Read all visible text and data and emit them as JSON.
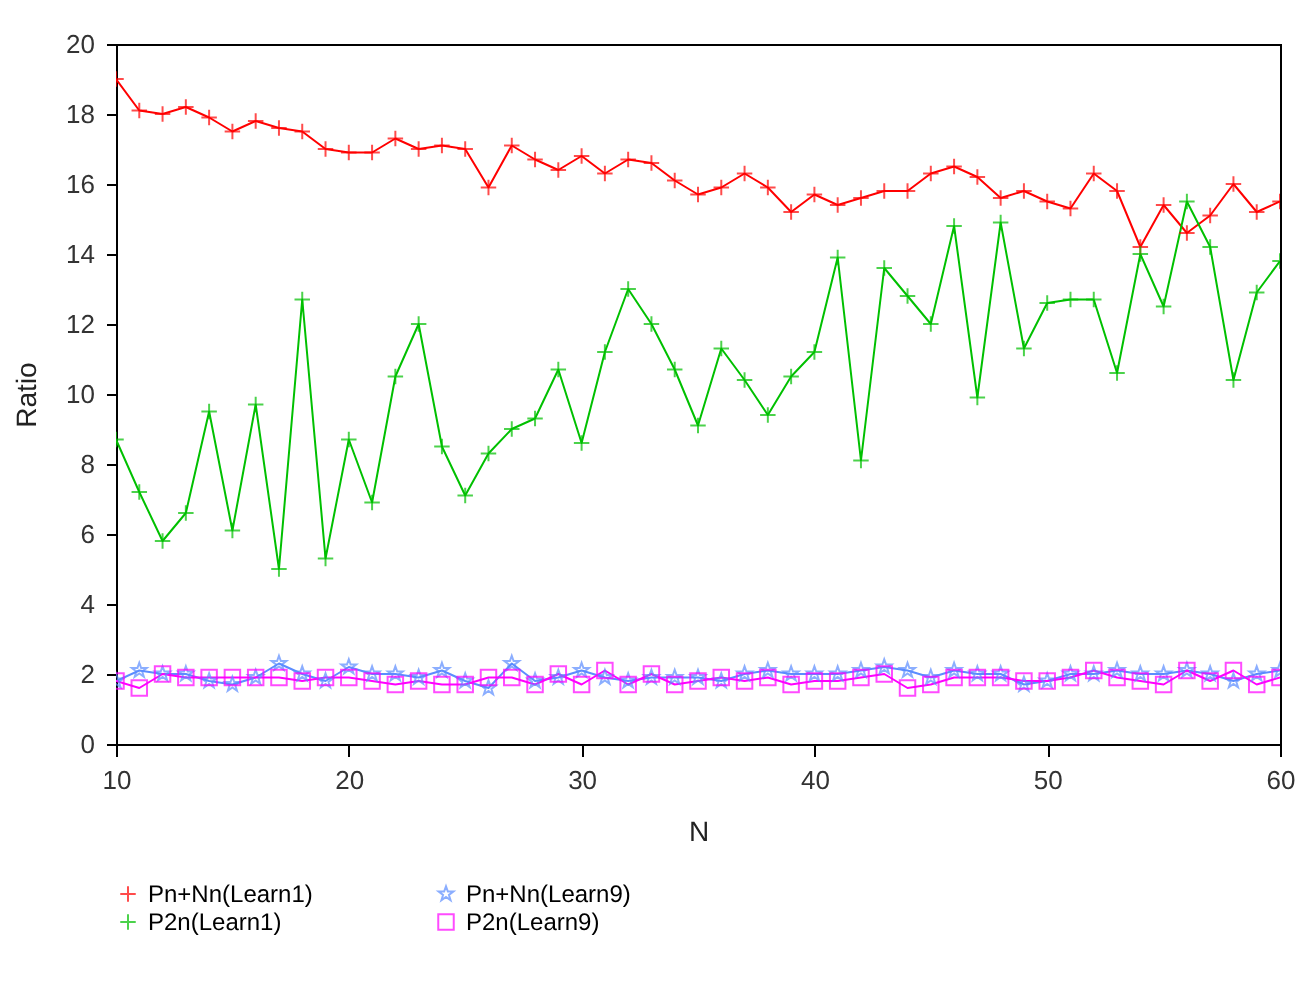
{
  "chart_data": {
    "type": "line",
    "xlabel": "N",
    "ylabel": "Ratio",
    "x": [
      10,
      11,
      12,
      13,
      14,
      15,
      16,
      17,
      18,
      19,
      20,
      21,
      22,
      23,
      24,
      25,
      26,
      27,
      28,
      29,
      30,
      31,
      32,
      33,
      34,
      35,
      36,
      37,
      38,
      39,
      40,
      41,
      42,
      43,
      44,
      45,
      46,
      47,
      48,
      49,
      50,
      51,
      52,
      53,
      54,
      55,
      56,
      57,
      58,
      59,
      60
    ],
    "series": [
      {
        "name": "Pn+Nn(Learn1)",
        "color": "#ff0000",
        "marker": "cross",
        "values": [
          19.0,
          18.1,
          18.0,
          18.2,
          17.9,
          17.5,
          17.8,
          17.6,
          17.5,
          17.0,
          16.9,
          16.9,
          17.3,
          17.0,
          17.1,
          17.0,
          15.9,
          17.1,
          16.7,
          16.4,
          16.8,
          16.3,
          16.7,
          16.6,
          16.1,
          15.7,
          15.9,
          16.3,
          15.9,
          15.2,
          15.7,
          15.4,
          15.6,
          15.8,
          15.8,
          16.3,
          16.5,
          16.2,
          15.6,
          15.8,
          15.5,
          15.3,
          16.3,
          15.8,
          14.2,
          15.4,
          14.6,
          15.1,
          16.0,
          15.2,
          15.5
        ]
      },
      {
        "name": "P2n(Learn1)",
        "color": "#00c000",
        "marker": "cross",
        "values": [
          8.7,
          7.2,
          5.8,
          6.6,
          9.5,
          6.1,
          9.7,
          5.0,
          12.7,
          5.3,
          8.7,
          6.9,
          10.5,
          12.0,
          8.5,
          7.1,
          8.3,
          9.0,
          9.3,
          10.7,
          8.6,
          11.2,
          13.0,
          12.0,
          10.7,
          9.1,
          11.3,
          10.4,
          9.4,
          10.5,
          11.2,
          13.9,
          8.1,
          13.6,
          12.8,
          12.0,
          14.8,
          9.9,
          14.9,
          11.3,
          12.6,
          12.7,
          12.7,
          10.6,
          14.0,
          12.5,
          15.5,
          14.2,
          10.4,
          12.9,
          13.8
        ]
      },
      {
        "name": "Pn+Nn(Learn9)",
        "color": "#5b8cff",
        "marker": "star",
        "values": [
          1.8,
          2.1,
          2.0,
          2.0,
          1.8,
          1.7,
          1.9,
          2.3,
          2.0,
          1.8,
          2.2,
          2.0,
          2.0,
          1.9,
          2.1,
          1.8,
          1.6,
          2.3,
          1.8,
          1.9,
          2.1,
          1.9,
          1.8,
          1.9,
          1.9,
          1.9,
          1.8,
          2.0,
          2.1,
          2.0,
          2.0,
          2.0,
          2.1,
          2.2,
          2.1,
          1.9,
          2.1,
          2.0,
          2.0,
          1.7,
          1.8,
          2.0,
          2.0,
          2.1,
          2.0,
          2.0,
          2.1,
          2.0,
          1.8,
          2.0,
          2.1
        ]
      },
      {
        "name": "P2n(Learn9)",
        "color": "#ff00ff",
        "marker": "square",
        "values": [
          1.8,
          1.6,
          2.0,
          1.9,
          1.9,
          1.9,
          1.9,
          1.9,
          1.8,
          1.9,
          1.9,
          1.8,
          1.7,
          1.8,
          1.7,
          1.7,
          1.9,
          1.9,
          1.7,
          2.0,
          1.7,
          2.1,
          1.7,
          2.0,
          1.7,
          1.8,
          1.9,
          1.8,
          1.9,
          1.7,
          1.8,
          1.8,
          1.9,
          2.0,
          1.6,
          1.7,
          1.9,
          1.9,
          1.9,
          1.8,
          1.8,
          1.9,
          2.1,
          1.9,
          1.8,
          1.7,
          2.1,
          1.8,
          2.1,
          1.7,
          1.9
        ]
      }
    ],
    "xlim": [
      10,
      60
    ],
    "xticks": [
      10,
      20,
      30,
      40,
      50,
      60
    ],
    "ylim": [
      0,
      20
    ],
    "yticks": [
      0,
      2,
      4,
      6,
      8,
      10,
      12,
      14,
      16,
      18,
      20
    ],
    "grid": false,
    "legend": "bottom",
    "line_style": "solid"
  }
}
